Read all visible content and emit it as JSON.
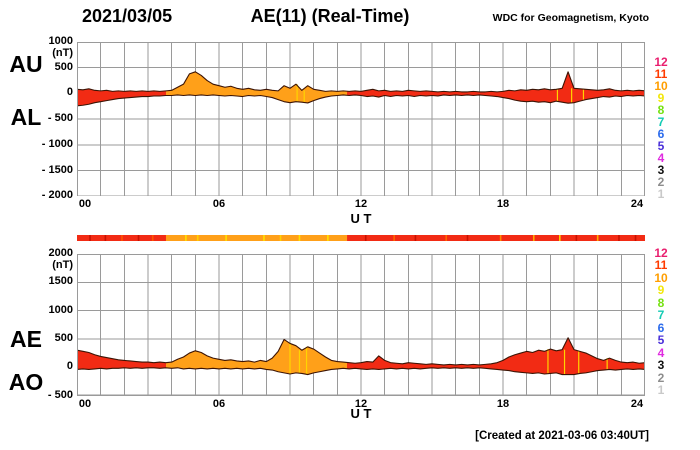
{
  "header": {
    "date": "2021/03/05",
    "title": "AE(11) (Real-Time)",
    "source": "WDC for Geomagnetism, Kyoto"
  },
  "footer": {
    "created": "[Created at 2021-03-06 03:40UT]"
  },
  "palette": {
    "grid": "#9a9a9a",
    "outline": "#3c1405",
    "fill_red": "#f22b14",
    "fill_orange": "#ffa019",
    "streak_yellow": "#ffd400"
  },
  "time": {
    "start": 0,
    "end": 24,
    "step": 0.25
  },
  "fill_segments": [
    {
      "from": 0,
      "to": 3.76,
      "color": "#f22b14"
    },
    {
      "from": 3.76,
      "to": 11.41,
      "color": "#ffa019"
    },
    {
      "from": 11.41,
      "to": 24,
      "color": "#f22b14"
    }
  ],
  "station_scale": {
    "values": [
      "12",
      "11",
      "10",
      "9",
      "8",
      "7",
      "6",
      "5",
      "4",
      "3",
      "2",
      "1"
    ],
    "colors": [
      "#e91e6e",
      "#ff3b00",
      "#ff9e00",
      "#f2e70c",
      "#76e113",
      "#12cbb4",
      "#2b6bec",
      "#4a30d9",
      "#e02be0",
      "#111111",
      "#8d8d8d",
      "#c9c9c9"
    ]
  },
  "color_bar": {
    "segments": [
      {
        "from": 0,
        "to": 3.76,
        "color": "#f22b14"
      },
      {
        "from": 3.76,
        "to": 11.41,
        "color": "#ffa019"
      },
      {
        "from": 11.41,
        "to": 24,
        "color": "#f22b14"
      }
    ],
    "streaks": [
      {
        "t": 0.55,
        "color": "#c81200"
      },
      {
        "t": 1.2,
        "color": "#c81200"
      },
      {
        "t": 1.9,
        "color": "#ff5500"
      },
      {
        "t": 2.6,
        "color": "#c81200"
      },
      {
        "t": 3.2,
        "color": "#ff5500"
      },
      {
        "t": 4.6,
        "color": "#ffe000"
      },
      {
        "t": 5.1,
        "color": "#ffd000"
      },
      {
        "t": 6.3,
        "color": "#ffe000"
      },
      {
        "t": 7.9,
        "color": "#ffe000"
      },
      {
        "t": 8.6,
        "color": "#ffd000"
      },
      {
        "t": 9.4,
        "color": "#ffe000"
      },
      {
        "t": 10.6,
        "color": "#ffe000"
      },
      {
        "t": 12.2,
        "color": "#c81200"
      },
      {
        "t": 13.4,
        "color": "#ff6600"
      },
      {
        "t": 14.3,
        "color": "#c81200"
      },
      {
        "t": 15.6,
        "color": "#ff6600"
      },
      {
        "t": 16.5,
        "color": "#c81200"
      },
      {
        "t": 17.9,
        "color": "#ff8800"
      },
      {
        "t": 19.3,
        "color": "#ffaa00"
      },
      {
        "t": 20.4,
        "color": "#ffcc00"
      },
      {
        "t": 21.1,
        "color": "#c81200"
      },
      {
        "t": 22.0,
        "color": "#ffaa00"
      },
      {
        "t": 22.9,
        "color": "#c81200"
      },
      {
        "t": 23.6,
        "color": "#c81200"
      }
    ]
  },
  "chart_data": [
    {
      "type": "area",
      "title": "AU / AL band, 2021/03/05",
      "left_labels": [
        "AU",
        "AL"
      ],
      "ylabel": "(nT)",
      "xlabel": "U T",
      "ylim": [
        -2000,
        1000
      ],
      "ytick_values": [
        1000,
        500,
        0,
        -500,
        -1000,
        -1500,
        -2000
      ],
      "ytick_labels": [
        "1000",
        "500",
        "0",
        "- 500",
        "- 1000",
        "- 1500",
        "- 2000"
      ],
      "xlim": [
        0,
        24
      ],
      "xtick_values": [
        0,
        6,
        12,
        18,
        24
      ],
      "xtick_labels": [
        "00",
        "06",
        "12",
        "18",
        "24"
      ],
      "grid": {
        "x_step_hours": 1,
        "y_step_nT": 500
      },
      "band_streaks": [
        9.3,
        9.6,
        20.3,
        20.9,
        21.4
      ],
      "series": [
        {
          "name": "AU",
          "values": [
            80,
            70,
            90,
            60,
            50,
            60,
            40,
            50,
            40,
            50,
            40,
            50,
            40,
            50,
            40,
            50,
            60,
            120,
            180,
            380,
            420,
            350,
            250,
            180,
            150,
            120,
            140,
            100,
            80,
            100,
            70,
            60,
            80,
            60,
            50,
            150,
            100,
            180,
            60,
            150,
            80,
            60,
            40,
            50,
            40,
            50,
            40,
            50,
            40,
            60,
            80,
            50,
            60,
            40,
            50,
            40,
            60,
            50,
            40,
            50,
            40,
            30,
            40,
            30,
            40,
            30,
            30,
            40,
            30,
            30,
            40,
            30,
            40,
            60,
            50,
            70,
            60,
            80,
            70,
            90,
            70,
            80,
            100,
            420,
            100,
            90,
            80,
            70,
            60,
            70,
            90,
            60,
            50,
            60,
            50,
            60,
            50
          ]
        },
        {
          "name": "AL",
          "values": [
            -240,
            -230,
            -210,
            -180,
            -160,
            -140,
            -120,
            -100,
            -90,
            -80,
            -70,
            -60,
            -60,
            -50,
            -50,
            -40,
            -40,
            -30,
            -40,
            -30,
            -40,
            -30,
            -40,
            -30,
            -40,
            -50,
            -40,
            -50,
            -60,
            -40,
            -50,
            -40,
            -60,
            -80,
            -120,
            -160,
            -180,
            -160,
            -170,
            -185,
            -140,
            -100,
            -70,
            -50,
            -40,
            -30,
            -40,
            -30,
            -40,
            -60,
            -50,
            -70,
            -40,
            -60,
            -40,
            -50,
            -40,
            -60,
            -40,
            -50,
            -40,
            -50,
            -30,
            -40,
            -30,
            -40,
            -30,
            -40,
            -30,
            -40,
            -50,
            -60,
            -80,
            -100,
            -130,
            -150,
            -160,
            -150,
            -170,
            -160,
            -180,
            -150,
            -170,
            -190,
            -180,
            -150,
            -120,
            -100,
            -80,
            -60,
            -70,
            -50,
            -60,
            -40,
            -50,
            -40,
            -50
          ]
        }
      ]
    },
    {
      "type": "area",
      "title": "AE / AO band, 2021/03/05",
      "left_labels": [
        "AE",
        "AO"
      ],
      "ylabel": "(nT)",
      "xlabel": "U T",
      "ylim": [
        -500,
        2000
      ],
      "ytick_values": [
        2000,
        1500,
        1000,
        500,
        0,
        -500
      ],
      "ytick_labels": [
        "2000",
        "1500",
        "1000",
        "500",
        "0",
        "- 500"
      ],
      "xlim": [
        0,
        24
      ],
      "xtick_values": [
        0,
        6,
        12,
        18,
        24
      ],
      "xtick_labels": [
        "00",
        "06",
        "12",
        "18",
        "24"
      ],
      "grid": {
        "x_step_hours": 1,
        "y_step_nT": 500
      },
      "band_streaks": [
        9.0,
        9.4,
        9.7,
        19.9,
        20.6,
        21.2,
        22.4
      ],
      "series": [
        {
          "name": "AE",
          "values": [
            300,
            280,
            260,
            220,
            190,
            170,
            150,
            130,
            120,
            110,
            100,
            90,
            90,
            80,
            90,
            80,
            90,
            140,
            180,
            250,
            290,
            260,
            200,
            160,
            140,
            120,
            130,
            110,
            100,
            110,
            90,
            120,
            100,
            160,
            280,
            490,
            420,
            380,
            300,
            360,
            320,
            250,
            180,
            120,
            100,
            90,
            80,
            70,
            80,
            100,
            90,
            200,
            120,
            80,
            70,
            60,
            80,
            70,
            60,
            50,
            60,
            50,
            40,
            50,
            40,
            50,
            40,
            50,
            40,
            50,
            60,
            80,
            120,
            180,
            220,
            250,
            280,
            260,
            300,
            280,
            320,
            290,
            310,
            520,
            310,
            280,
            250,
            200,
            150,
            120,
            160,
            120,
            90,
            80,
            90,
            70,
            80
          ]
        },
        {
          "name": "AO",
          "values": [
            -40,
            -30,
            -40,
            -30,
            -20,
            -30,
            -20,
            -20,
            -10,
            -20,
            -10,
            -20,
            -10,
            -10,
            -20,
            -10,
            -20,
            -10,
            -30,
            -20,
            -30,
            -20,
            -30,
            -20,
            -30,
            -20,
            -30,
            -20,
            -30,
            -20,
            -30,
            -20,
            -40,
            -50,
            -80,
            -100,
            -120,
            -100,
            -110,
            -130,
            -100,
            -80,
            -60,
            -40,
            -30,
            -20,
            -30,
            -20,
            -30,
            -40,
            -30,
            -40,
            -30,
            -20,
            -30,
            -20,
            -30,
            -20,
            -30,
            -20,
            -10,
            -20,
            -10,
            -20,
            -10,
            -20,
            -10,
            -20,
            -10,
            -20,
            -30,
            -40,
            -50,
            -60,
            -80,
            -90,
            -100,
            -110,
            -100,
            -120,
            -110,
            -100,
            -130,
            -130,
            -130,
            -110,
            -100,
            -80,
            -60,
            -50,
            -40,
            -50,
            -40,
            -30,
            -40,
            -30,
            -40
          ]
        }
      ]
    }
  ]
}
